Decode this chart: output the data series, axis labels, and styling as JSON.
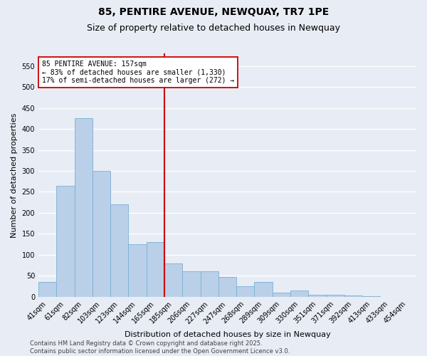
{
  "title": "85, PENTIRE AVENUE, NEWQUAY, TR7 1PE",
  "subtitle": "Size of property relative to detached houses in Newquay",
  "xlabel": "Distribution of detached houses by size in Newquay",
  "ylabel": "Number of detached properties",
  "categories": [
    "41sqm",
    "61sqm",
    "82sqm",
    "103sqm",
    "123sqm",
    "144sqm",
    "165sqm",
    "185sqm",
    "206sqm",
    "227sqm",
    "247sqm",
    "268sqm",
    "289sqm",
    "309sqm",
    "330sqm",
    "351sqm",
    "371sqm",
    "392sqm",
    "413sqm",
    "433sqm",
    "454sqm"
  ],
  "values": [
    35,
    265,
    425,
    300,
    220,
    125,
    130,
    80,
    60,
    60,
    47,
    25,
    35,
    10,
    15,
    5,
    5,
    3,
    2,
    0,
    0
  ],
  "bar_color": "#bad0e8",
  "bar_edge_color": "#7aafd4",
  "vline_x": 6.5,
  "vline_color": "#cc0000",
  "annotation_text": "85 PENTIRE AVENUE: 157sqm\n← 83% of detached houses are smaller (1,330)\n17% of semi-detached houses are larger (272) →",
  "annotation_box_color": "#ffffff",
  "annotation_box_edge": "#cc0000",
  "ylim": [
    0,
    580
  ],
  "yticks": [
    0,
    50,
    100,
    150,
    200,
    250,
    300,
    350,
    400,
    450,
    500,
    550
  ],
  "background_color": "#e8ecf5",
  "grid_color": "#ffffff",
  "footer": "Contains HM Land Registry data © Crown copyright and database right 2025.\nContains public sector information licensed under the Open Government Licence v3.0.",
  "title_fontsize": 10,
  "subtitle_fontsize": 9,
  "ylabel_fontsize": 8,
  "xlabel_fontsize": 8,
  "tick_fontsize": 7,
  "annotation_fontsize": 7,
  "footer_fontsize": 6
}
